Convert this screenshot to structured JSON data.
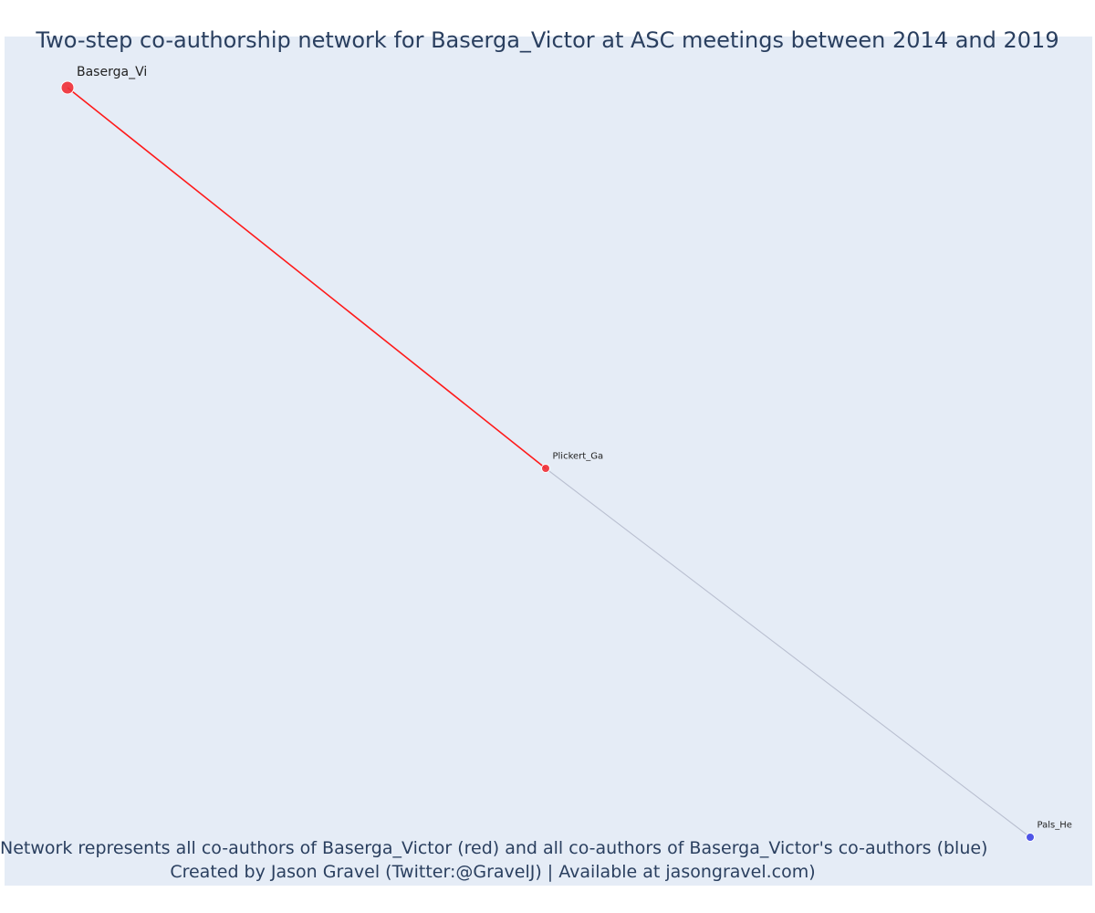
{
  "title": "Two-step co-authorship network for Baserga_Victor at ASC meetings between 2014 and 2019",
  "caption": {
    "line1": "Network represents all co-authors of Baserga_Victor (red) and all co-authors of Baserga_Victor's co-authors (blue)",
    "line2": "Created by Jason Gravel (Twitter:@GravelJ) | Available at jasongravel.com)"
  },
  "colors": {
    "plot_background": "#e5ecf6",
    "direct_coauthor": "#ef2f35",
    "second_step_coauthor": "#3e45e6",
    "direct_edge": "#ff1a1a",
    "indirect_edge": "#b9bfd0"
  },
  "nodes": [
    {
      "id": "baserga",
      "label": "Baserga_Vi",
      "group": "focal"
    },
    {
      "id": "plickert",
      "label": "Plickert_Ga",
      "group": "direct"
    },
    {
      "id": "pals",
      "label": "Pals_He",
      "group": "second"
    }
  ],
  "edges": [
    {
      "source": "baserga",
      "target": "plickert",
      "type": "direct"
    },
    {
      "source": "plickert",
      "target": "pals",
      "type": "indirect"
    }
  ]
}
